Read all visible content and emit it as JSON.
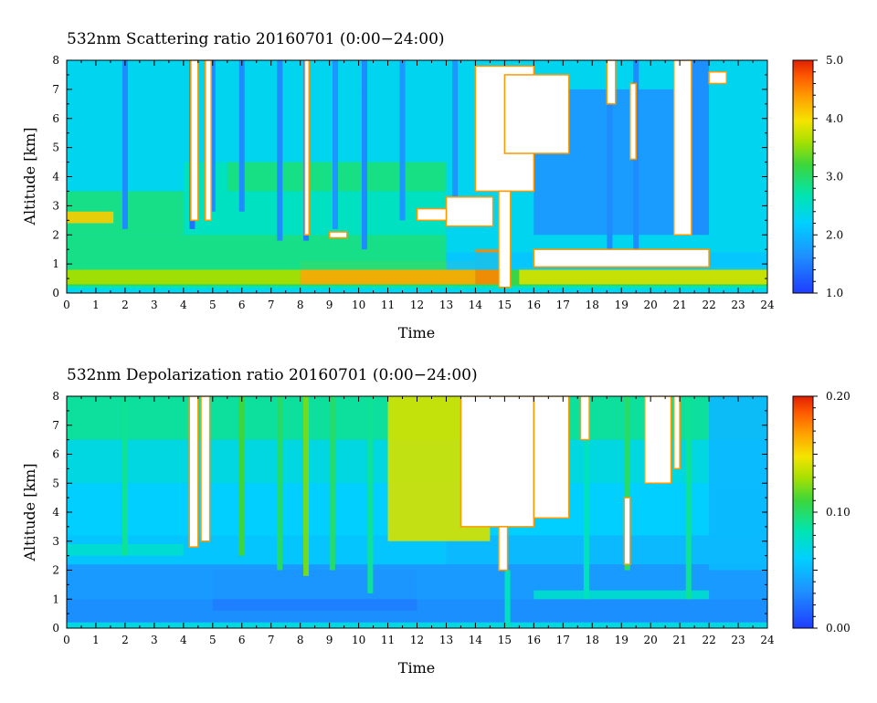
{
  "chart_data": [
    {
      "type": "heatmap",
      "title": "532nm Scattering ratio  20160701 (0:00−24:00)",
      "xlabel": "Time",
      "ylabel": "Altitude [km]",
      "x_ticks": [
        "0",
        "1",
        "2",
        "3",
        "4",
        "5",
        "6",
        "7",
        "8",
        "9",
        "10",
        "11",
        "12",
        "13",
        "14",
        "15",
        "16",
        "17",
        "18",
        "19",
        "20",
        "21",
        "22",
        "23",
        "24"
      ],
      "y_ticks": [
        "0",
        "1",
        "2",
        "3",
        "4",
        "5",
        "6",
        "7",
        "8"
      ],
      "xlim": [
        0,
        24
      ],
      "ylim": [
        0,
        8
      ],
      "colorbar": {
        "min": 1.0,
        "max": 5.0,
        "tick_labels": [
          "1.0",
          "2.0",
          "3.0",
          "4.0",
          "5.0"
        ],
        "tick_values": [
          1.0,
          2.0,
          3.0,
          4.0,
          5.0
        ]
      },
      "bands": [
        {
          "t0": 0,
          "t1": 24,
          "alt0": 0.15,
          "alt1": 0.25,
          "value": 2.6
        },
        {
          "t0": 0,
          "t1": 24,
          "alt0": 0.25,
          "alt1": 0.8,
          "value": 3.2
        },
        {
          "t0": 0,
          "t1": 8,
          "alt0": 0.3,
          "alt1": 0.8,
          "value": 3.6
        },
        {
          "t0": 8,
          "t1": 14,
          "alt0": 0.3,
          "alt1": 1.1,
          "value": 4.3
        },
        {
          "t0": 14,
          "t1": 15,
          "alt0": 0.3,
          "alt1": 1.5,
          "value": 4.5
        },
        {
          "t0": 15.5,
          "t1": 24,
          "alt0": 0.3,
          "alt1": 0.9,
          "value": 3.8
        },
        {
          "t0": 0,
          "t1": 13,
          "alt0": 0.8,
          "alt1": 2.0,
          "value": 2.9
        },
        {
          "t0": 13,
          "t1": 24,
          "alt0": 0.8,
          "alt1": 1.4,
          "value": 2.1
        },
        {
          "t0": 0,
          "t1": 4,
          "alt0": 2.0,
          "alt1": 3.5,
          "value": 2.9
        },
        {
          "t0": 0,
          "t1": 1.6,
          "alt0": 2.4,
          "alt1": 2.8,
          "value": 4.1
        },
        {
          "t0": 4,
          "t1": 13,
          "alt0": 2.0,
          "alt1": 4.5,
          "value": 2.6
        },
        {
          "t0": 5.5,
          "t1": 13,
          "alt0": 3.5,
          "alt1": 4.5,
          "value": 2.9
        },
        {
          "t0": 0,
          "t1": 24,
          "alt0": 7.0,
          "alt1": 8.0,
          "value": 2.3
        },
        {
          "t0": 16,
          "t1": 21.5,
          "alt0": 2.0,
          "alt1": 7.0,
          "value": 1.7
        },
        {
          "t0": 21,
          "t1": 22,
          "alt0": 2.0,
          "alt1": 8.0,
          "value": 1.6
        }
      ],
      "columns": [
        {
          "t": 2.0,
          "alt0": 2.2,
          "alt1": 8.0,
          "value": 1.6
        },
        {
          "t": 4.3,
          "alt0": 2.2,
          "alt1": 8.0,
          "value": 1.4
        },
        {
          "t": 5.0,
          "alt0": 2.8,
          "alt1": 8.0,
          "value": 1.6
        },
        {
          "t": 6.0,
          "alt0": 2.8,
          "alt1": 8.0,
          "value": 1.6
        },
        {
          "t": 7.3,
          "alt0": 1.8,
          "alt1": 8.0,
          "value": 1.6
        },
        {
          "t": 8.2,
          "alt0": 1.8,
          "alt1": 8.0,
          "value": 1.5
        },
        {
          "t": 9.2,
          "alt0": 2.2,
          "alt1": 8.0,
          "value": 1.7
        },
        {
          "t": 10.2,
          "alt0": 1.5,
          "alt1": 8.0,
          "value": 1.6
        },
        {
          "t": 11.5,
          "alt0": 2.5,
          "alt1": 8.0,
          "value": 1.7
        },
        {
          "t": 13.3,
          "alt0": 2.5,
          "alt1": 8.0,
          "value": 1.7
        },
        {
          "t": 15.1,
          "alt0": 0.2,
          "alt1": 1.4,
          "value": 1.5
        },
        {
          "t": 18.6,
          "alt0": 1.0,
          "alt1": 8.0,
          "value": 1.6
        },
        {
          "t": 19.5,
          "alt0": 1.0,
          "alt1": 8.0,
          "value": 1.6
        }
      ],
      "no_data": [
        {
          "t0": 4.25,
          "t1": 4.5,
          "alt0": 2.5,
          "alt1": 8.0
        },
        {
          "t0": 4.75,
          "t1": 4.95,
          "alt0": 2.5,
          "alt1": 8.0
        },
        {
          "t0": 8.15,
          "t1": 8.3,
          "alt0": 2.0,
          "alt1": 8.0
        },
        {
          "t0": 14.0,
          "t1": 16.0,
          "alt0": 3.5,
          "alt1": 7.8
        },
        {
          "t0": 14.8,
          "t1": 15.2,
          "alt0": 0.2,
          "alt1": 3.5
        },
        {
          "t0": 15.0,
          "t1": 17.2,
          "alt0": 4.8,
          "alt1": 7.5
        },
        {
          "t0": 13.0,
          "t1": 14.6,
          "alt0": 2.3,
          "alt1": 3.3
        },
        {
          "t0": 16.0,
          "t1": 22.0,
          "alt0": 0.9,
          "alt1": 1.5
        },
        {
          "t0": 20.8,
          "t1": 21.4,
          "alt0": 2.0,
          "alt1": 8.0
        },
        {
          "t0": 18.5,
          "t1": 18.8,
          "alt0": 6.5,
          "alt1": 8.0
        },
        {
          "t0": 19.3,
          "t1": 19.5,
          "alt0": 4.6,
          "alt1": 7.2
        },
        {
          "t0": 22.0,
          "t1": 22.6,
          "alt0": 7.2,
          "alt1": 7.6
        },
        {
          "t0": 12.0,
          "t1": 13.0,
          "alt0": 2.5,
          "alt1": 2.9
        },
        {
          "t0": 9.0,
          "t1": 9.6,
          "alt0": 1.9,
          "alt1": 2.1
        }
      ]
    },
    {
      "type": "heatmap",
      "title": "532nm Depolarization ratio  20160701 (0:00−24:00)",
      "xlabel": "Time",
      "ylabel": "Altitude [km]",
      "x_ticks": [
        "0",
        "1",
        "2",
        "3",
        "4",
        "5",
        "6",
        "7",
        "8",
        "9",
        "10",
        "11",
        "12",
        "13",
        "14",
        "15",
        "16",
        "17",
        "18",
        "19",
        "20",
        "21",
        "22",
        "23",
        "24"
      ],
      "y_ticks": [
        "0",
        "1",
        "2",
        "3",
        "4",
        "5",
        "6",
        "7",
        "8"
      ],
      "xlim": [
        0,
        24
      ],
      "ylim": [
        0,
        8
      ],
      "colorbar": {
        "min": 0.0,
        "max": 0.2,
        "tick_labels": [
          "0.00",
          "0.10",
          "0.20"
        ],
        "tick_values": [
          0.0,
          0.1,
          0.2
        ]
      },
      "bands": [
        {
          "t0": 0,
          "t1": 24,
          "alt0": 0.0,
          "alt1": 0.2,
          "value": 0.07
        },
        {
          "t0": 0,
          "t1": 24,
          "alt0": 0.2,
          "alt1": 1.0,
          "value": 0.03
        },
        {
          "t0": 5,
          "t1": 12,
          "alt0": 0.6,
          "alt1": 2.0,
          "value": 0.025
        },
        {
          "t0": 0,
          "t1": 24,
          "alt0": 1.0,
          "alt1": 2.2,
          "value": 0.035
        },
        {
          "t0": 0,
          "t1": 13,
          "alt0": 2.2,
          "alt1": 3.2,
          "value": 0.055
        },
        {
          "t0": 0,
          "t1": 4,
          "alt0": 2.5,
          "alt1": 2.9,
          "value": 0.075
        },
        {
          "t0": 0,
          "t1": 24,
          "alt0": 3.2,
          "alt1": 5.0,
          "value": 0.06
        },
        {
          "t0": 0,
          "t1": 24,
          "alt0": 5.0,
          "alt1": 6.5,
          "value": 0.07
        },
        {
          "t0": 0,
          "t1": 24,
          "alt0": 6.5,
          "alt1": 8.0,
          "value": 0.09
        },
        {
          "t0": 11,
          "t1": 14.5,
          "alt0": 3.0,
          "alt1": 8.0,
          "value": 0.14
        },
        {
          "t0": 16,
          "t1": 22,
          "alt0": 1.0,
          "alt1": 1.3,
          "value": 0.075
        },
        {
          "t0": 22,
          "t1": 24,
          "alt0": 2.0,
          "alt1": 8.0,
          "value": 0.05
        }
      ],
      "columns": [
        {
          "t": 2.0,
          "alt0": 2.5,
          "alt1": 8.0,
          "value": 0.09
        },
        {
          "t": 6.0,
          "alt0": 2.5,
          "alt1": 8.0,
          "value": 0.11
        },
        {
          "t": 7.3,
          "alt0": 2.0,
          "alt1": 8.0,
          "value": 0.1
        },
        {
          "t": 8.2,
          "alt0": 1.8,
          "alt1": 8.0,
          "value": 0.12
        },
        {
          "t": 9.1,
          "alt0": 2.0,
          "alt1": 8.0,
          "value": 0.1
        },
        {
          "t": 10.4,
          "alt0": 1.2,
          "alt1": 8.0,
          "value": 0.09
        },
        {
          "t": 15.1,
          "alt0": 0.0,
          "alt1": 2.0,
          "value": 0.08
        },
        {
          "t": 17.8,
          "alt0": 1.0,
          "alt1": 8.0,
          "value": 0.08
        },
        {
          "t": 19.2,
          "alt0": 2.0,
          "alt1": 8.0,
          "value": 0.1
        },
        {
          "t": 21.3,
          "alt0": 1.0,
          "alt1": 8.0,
          "value": 0.09
        }
      ],
      "no_data": [
        {
          "t0": 4.2,
          "t1": 4.5,
          "alt0": 2.8,
          "alt1": 8.0
        },
        {
          "t0": 4.6,
          "t1": 4.9,
          "alt0": 3.0,
          "alt1": 8.0
        },
        {
          "t0": 13.5,
          "t1": 16.0,
          "alt0": 3.5,
          "alt1": 8.0
        },
        {
          "t0": 14.8,
          "t1": 15.1,
          "alt0": 2.0,
          "alt1": 3.5
        },
        {
          "t0": 16.0,
          "t1": 17.2,
          "alt0": 3.8,
          "alt1": 8.0
        },
        {
          "t0": 19.1,
          "t1": 19.3,
          "alt0": 2.2,
          "alt1": 4.5
        },
        {
          "t0": 19.8,
          "t1": 20.7,
          "alt0": 5.0,
          "alt1": 8.0
        },
        {
          "t0": 20.8,
          "t1": 21.0,
          "alt0": 5.5,
          "alt1": 8.0
        },
        {
          "t0": 17.6,
          "t1": 17.9,
          "alt0": 6.5,
          "alt1": 8.0
        }
      ]
    }
  ]
}
